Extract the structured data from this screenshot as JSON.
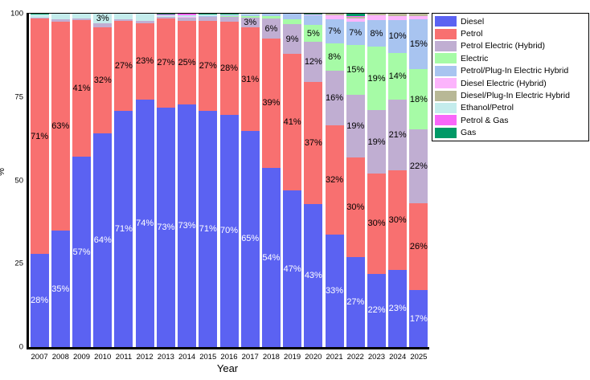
{
  "figure": {
    "xlabel": "Year",
    "ylabel": "%"
  },
  "chart_data": {
    "type": "bar",
    "stacked": true,
    "orientation": "vertical",
    "title": "",
    "xlabel": "Year",
    "ylabel": "%",
    "ylim": [
      0,
      100
    ],
    "yticks": [
      0,
      25,
      50,
      75,
      100
    ],
    "grid": false,
    "legend_position": "right",
    "categories": [
      "2007",
      "2008",
      "2009",
      "2010",
      "2011",
      "2012",
      "2013",
      "2014",
      "2015",
      "2016",
      "2017",
      "2018",
      "2019",
      "2020",
      "2021",
      "2022",
      "2023",
      "2024",
      "2025"
    ],
    "series": [
      {
        "name": "Diesel",
        "color": "#5b62f2",
        "label_color": "#ffffff",
        "values": [
          28,
          35,
          57,
          64,
          71,
          74,
          73,
          73,
          71,
          70,
          65,
          54,
          47,
          43,
          33,
          27,
          22,
          23,
          17
        ],
        "labels": [
          "28%",
          "35%",
          "57%",
          "64%",
          "71%",
          "74%",
          "73%",
          "73%",
          "71%",
          "70%",
          "65%",
          "54%",
          "47%",
          "43%",
          "33%",
          "27%",
          "22%",
          "23%",
          "17%"
        ]
      },
      {
        "name": "Petrol",
        "color": "#f87070",
        "label_color": "#000000",
        "values": [
          71,
          63,
          41,
          32,
          27,
          23,
          27,
          25,
          27,
          28,
          31,
          39,
          41,
          37,
          32,
          30,
          30,
          30,
          26
        ],
        "labels": [
          "71%",
          "63%",
          "41%",
          "32%",
          "27%",
          "23%",
          "27%",
          "25%",
          "27%",
          "28%",
          "31%",
          "39%",
          "41%",
          "37%",
          "32%",
          "30%",
          "30%",
          "30%",
          "26%"
        ]
      },
      {
        "name": "Petrol Electric (Hybrid)",
        "color": "#c0aed2",
        "label_color": "#000000",
        "values": [
          0.3,
          0.6,
          0.6,
          1,
          0.4,
          0.6,
          0.5,
          1,
          1.4,
          1.4,
          3,
          6,
          9,
          12,
          16,
          19,
          19,
          21,
          22
        ],
        "labels": [
          null,
          null,
          null,
          null,
          null,
          null,
          null,
          null,
          null,
          null,
          "3%",
          "6%",
          "9%",
          "12%",
          "16%",
          "19%",
          "19%",
          "21%",
          "22%"
        ]
      },
      {
        "name": "Electric",
        "color": "#a6fba6",
        "label_color": "#000000",
        "values": [
          0,
          0,
          0,
          0,
          0,
          0,
          0,
          0,
          0,
          0.2,
          0.5,
          0.7,
          1.5,
          5,
          8,
          15,
          19,
          14,
          18
        ],
        "labels": [
          null,
          null,
          null,
          null,
          null,
          null,
          null,
          null,
          null,
          null,
          null,
          null,
          null,
          "5%",
          "8%",
          "15%",
          "19%",
          "14%",
          "18%"
        ]
      },
      {
        "name": "Petrol/Plug-In Electric Hybrid",
        "color": "#a8c4f0",
        "label_color": "#000000",
        "values": [
          0,
          0,
          0,
          0,
          0,
          0,
          0,
          0,
          0.2,
          0.3,
          0.5,
          0.8,
          1.6,
          3,
          7,
          7,
          8,
          10,
          15
        ],
        "labels": [
          null,
          null,
          null,
          null,
          null,
          null,
          null,
          null,
          null,
          null,
          null,
          null,
          null,
          null,
          "7%",
          "7%",
          "8%",
          "10%",
          "15%"
        ]
      },
      {
        "name": "Diesel Electric (Hybrid)",
        "color": "#fcb4fc",
        "label_color": "#000000",
        "values": [
          0,
          0,
          0,
          0,
          0,
          0,
          0,
          0.2,
          0,
          0,
          0,
          0,
          0,
          0.3,
          1.3,
          1,
          1.4,
          1.2,
          1
        ],
        "labels": [
          null,
          null,
          null,
          null,
          null,
          null,
          null,
          null,
          null,
          null,
          null,
          null,
          null,
          null,
          null,
          null,
          null,
          null,
          null
        ]
      },
      {
        "name": "Diesel/Plug-In Electric Hybrid",
        "color": "#b8b896",
        "label_color": "#000000",
        "values": [
          0,
          0,
          0,
          0,
          0,
          0,
          0,
          0,
          0,
          0,
          0,
          0,
          0,
          0,
          0.4,
          0.4,
          0.5,
          0.6,
          0.6
        ],
        "labels": [
          null,
          null,
          null,
          null,
          null,
          null,
          null,
          null,
          null,
          null,
          null,
          null,
          null,
          null,
          null,
          null,
          null,
          null,
          null
        ]
      },
      {
        "name": "Ethanol/Petrol",
        "color": "#c4ecec",
        "label_color": "#000000",
        "values": [
          1,
          1.8,
          1.4,
          3,
          1.8,
          2.2,
          0.5,
          0.5,
          0.4,
          0.3,
          0.2,
          0,
          0,
          0,
          0,
          0,
          0,
          0,
          0
        ],
        "labels": [
          null,
          null,
          null,
          "3%",
          null,
          null,
          null,
          null,
          null,
          null,
          null,
          null,
          null,
          null,
          null,
          null,
          null,
          null,
          null
        ]
      },
      {
        "name": "Petrol & Gas",
        "color": "#f966f9",
        "label_color": "#000000",
        "values": [
          0,
          0,
          0,
          0,
          0,
          0,
          0.3,
          0.5,
          0,
          0,
          0,
          0,
          0,
          0,
          0,
          0.2,
          0,
          0,
          0
        ],
        "labels": [
          null,
          null,
          null,
          null,
          null,
          null,
          null,
          null,
          null,
          null,
          null,
          null,
          null,
          null,
          null,
          null,
          null,
          null,
          null
        ]
      },
      {
        "name": "Gas",
        "color": "#009966",
        "label_color": "#000000",
        "values": [
          0.2,
          0,
          0,
          0,
          0,
          0,
          0.2,
          0,
          0.2,
          0.2,
          0,
          0,
          0,
          0.2,
          0,
          0.8,
          0,
          0,
          0
        ],
        "labels": [
          null,
          null,
          null,
          null,
          null,
          null,
          null,
          null,
          null,
          null,
          null,
          null,
          null,
          null,
          null,
          null,
          null,
          null,
          null
        ]
      }
    ]
  }
}
